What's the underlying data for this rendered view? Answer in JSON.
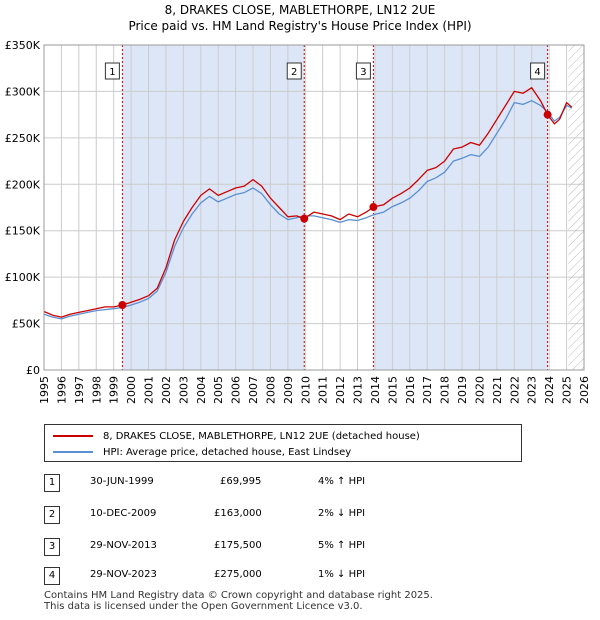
{
  "title": {
    "line1": "8, DRAKES CLOSE, MABLETHORPE, LN12 2UE",
    "line2": "Price paid vs. HM Land Registry's House Price Index (HPI)"
  },
  "colors": {
    "price_line": "#cc0000",
    "hpi_line": "#5b8fd1",
    "shade": "#dde6f7",
    "grid": "#cccccc",
    "marker_box_border": "#333333"
  },
  "legend": {
    "price_label": "8, DRAKES CLOSE, MABLETHORPE, LN12 2UE (detached house)",
    "hpi_label": "HPI: Average price, detached house, East Lindsey"
  },
  "transactions": [
    {
      "num": "1",
      "date": "30-JUN-1999",
      "price": "£69,995",
      "hpi": "4% ↑ HPI"
    },
    {
      "num": "2",
      "date": "10-DEC-2009",
      "price": "£163,000",
      "hpi": "2% ↓ HPI"
    },
    {
      "num": "3",
      "date": "29-NOV-2013",
      "price": "£175,500",
      "hpi": "5% ↑ HPI"
    },
    {
      "num": "4",
      "date": "29-NOV-2023",
      "price": "£275,000",
      "hpi": "1% ↓ HPI"
    }
  ],
  "footer": {
    "line1": "Contains HM Land Registry data © Crown copyright and database right 2025.",
    "line2": "This data is licensed under the Open Government Licence v3.0."
  },
  "chart_data": {
    "type": "line",
    "title": "Price paid vs. HM Land Registry's House Price Index (HPI)",
    "xlim": [
      1995,
      2026
    ],
    "ylim": [
      0,
      350000
    ],
    "x_ticks": [
      "1995",
      "1996",
      "1997",
      "1998",
      "1999",
      "2000",
      "2001",
      "2002",
      "2003",
      "2004",
      "2005",
      "2006",
      "2007",
      "2008",
      "2009",
      "2010",
      "2011",
      "2012",
      "2013",
      "2014",
      "2015",
      "2016",
      "2017",
      "2018",
      "2019",
      "2020",
      "2021",
      "2022",
      "2023",
      "2024",
      "2025",
      "2026"
    ],
    "y_ticks": [
      {
        "value": 0,
        "label": "£0"
      },
      {
        "value": 50000,
        "label": "£50K"
      },
      {
        "value": 100000,
        "label": "£100K"
      },
      {
        "value": 150000,
        "label": "£150K"
      },
      {
        "value": 200000,
        "label": "£200K"
      },
      {
        "value": 250000,
        "label": "£250K"
      },
      {
        "value": 300000,
        "label": "£300K"
      },
      {
        "value": 350000,
        "label": "£350K"
      }
    ],
    "shaded_periods": [
      {
        "from": 1999.5,
        "to": 2009.94
      },
      {
        "from": 2013.91,
        "to": 2023.91
      }
    ],
    "future_hatch_from": 2025.1,
    "markers": [
      {
        "label": "1",
        "x": 1999.5,
        "y": 69995
      },
      {
        "label": "2",
        "x": 2009.94,
        "y": 163000
      },
      {
        "label": "3",
        "x": 2013.91,
        "y": 175500
      },
      {
        "label": "4",
        "x": 2023.91,
        "y": 275000
      }
    ],
    "series": [
      {
        "name": "8, DRAKES CLOSE, MABLETHORPE, LN12 2UE (detached house)",
        "x": [
          1995,
          1995.5,
          1996,
          1996.5,
          1997,
          1997.5,
          1998,
          1998.5,
          1999,
          1999.5,
          2000,
          2000.5,
          2001,
          2001.5,
          2002,
          2002.5,
          2003,
          2003.5,
          2004,
          2004.5,
          2005,
          2005.5,
          2006,
          2006.5,
          2007,
          2007.5,
          2008,
          2008.5,
          2009,
          2009.5,
          2009.94,
          2010.5,
          2011,
          2011.5,
          2012,
          2012.5,
          2013,
          2013.5,
          2013.91,
          2014.5,
          2015,
          2015.5,
          2016,
          2016.5,
          2017,
          2017.5,
          2018,
          2018.5,
          2019,
          2019.5,
          2020,
          2020.5,
          2021,
          2021.5,
          2022,
          2022.5,
          2023,
          2023.5,
          2023.91,
          2024.3,
          2024.6,
          2025,
          2025.3
        ],
        "values": [
          63000,
          59000,
          57000,
          60000,
          62000,
          64000,
          66000,
          68000,
          68000,
          69995,
          73000,
          76000,
          80000,
          88000,
          110000,
          140000,
          160000,
          175000,
          188000,
          195000,
          188000,
          192000,
          196000,
          198000,
          205000,
          198000,
          185000,
          175000,
          165000,
          166000,
          163000,
          170000,
          168000,
          166000,
          162000,
          168000,
          165000,
          170000,
          175500,
          178000,
          185000,
          190000,
          196000,
          205000,
          215000,
          218000,
          225000,
          238000,
          240000,
          245000,
          242000,
          255000,
          270000,
          285000,
          300000,
          298000,
          304000,
          290000,
          275000,
          265000,
          270000,
          288000,
          283000
        ]
      },
      {
        "name": "HPI: Average price, detached house, East Lindsey",
        "x": [
          1995,
          1995.5,
          1996,
          1996.5,
          1997,
          1997.5,
          1998,
          1998.5,
          1999,
          1999.5,
          2000,
          2000.5,
          2001,
          2001.5,
          2002,
          2002.5,
          2003,
          2003.5,
          2004,
          2004.5,
          2005,
          2005.5,
          2006,
          2006.5,
          2007,
          2007.5,
          2008,
          2008.5,
          2009,
          2009.5,
          2009.94,
          2010.5,
          2011,
          2011.5,
          2012,
          2012.5,
          2013,
          2013.5,
          2013.91,
          2014.5,
          2015,
          2015.5,
          2016,
          2016.5,
          2017,
          2017.5,
          2018,
          2018.5,
          2019,
          2019.5,
          2020,
          2020.5,
          2021,
          2021.5,
          2022,
          2022.5,
          2023,
          2023.5,
          2023.91,
          2024.3,
          2024.6,
          2025,
          2025.3
        ],
        "values": [
          60000,
          57000,
          55000,
          58000,
          60000,
          62000,
          64000,
          65000,
          66000,
          67300,
          70000,
          73000,
          77000,
          85000,
          105000,
          133000,
          153000,
          168000,
          180000,
          187000,
          181000,
          185000,
          189000,
          191000,
          196000,
          190000,
          178000,
          168000,
          162000,
          164000,
          166000,
          166000,
          164000,
          162000,
          159000,
          162000,
          161000,
          164000,
          167100,
          170000,
          176000,
          180000,
          185000,
          193000,
          203000,
          207000,
          213000,
          225000,
          228000,
          232000,
          230000,
          240000,
          255000,
          270000,
          288000,
          286000,
          290000,
          285000,
          277800,
          268000,
          272000,
          285000,
          282000
        ]
      }
    ]
  }
}
